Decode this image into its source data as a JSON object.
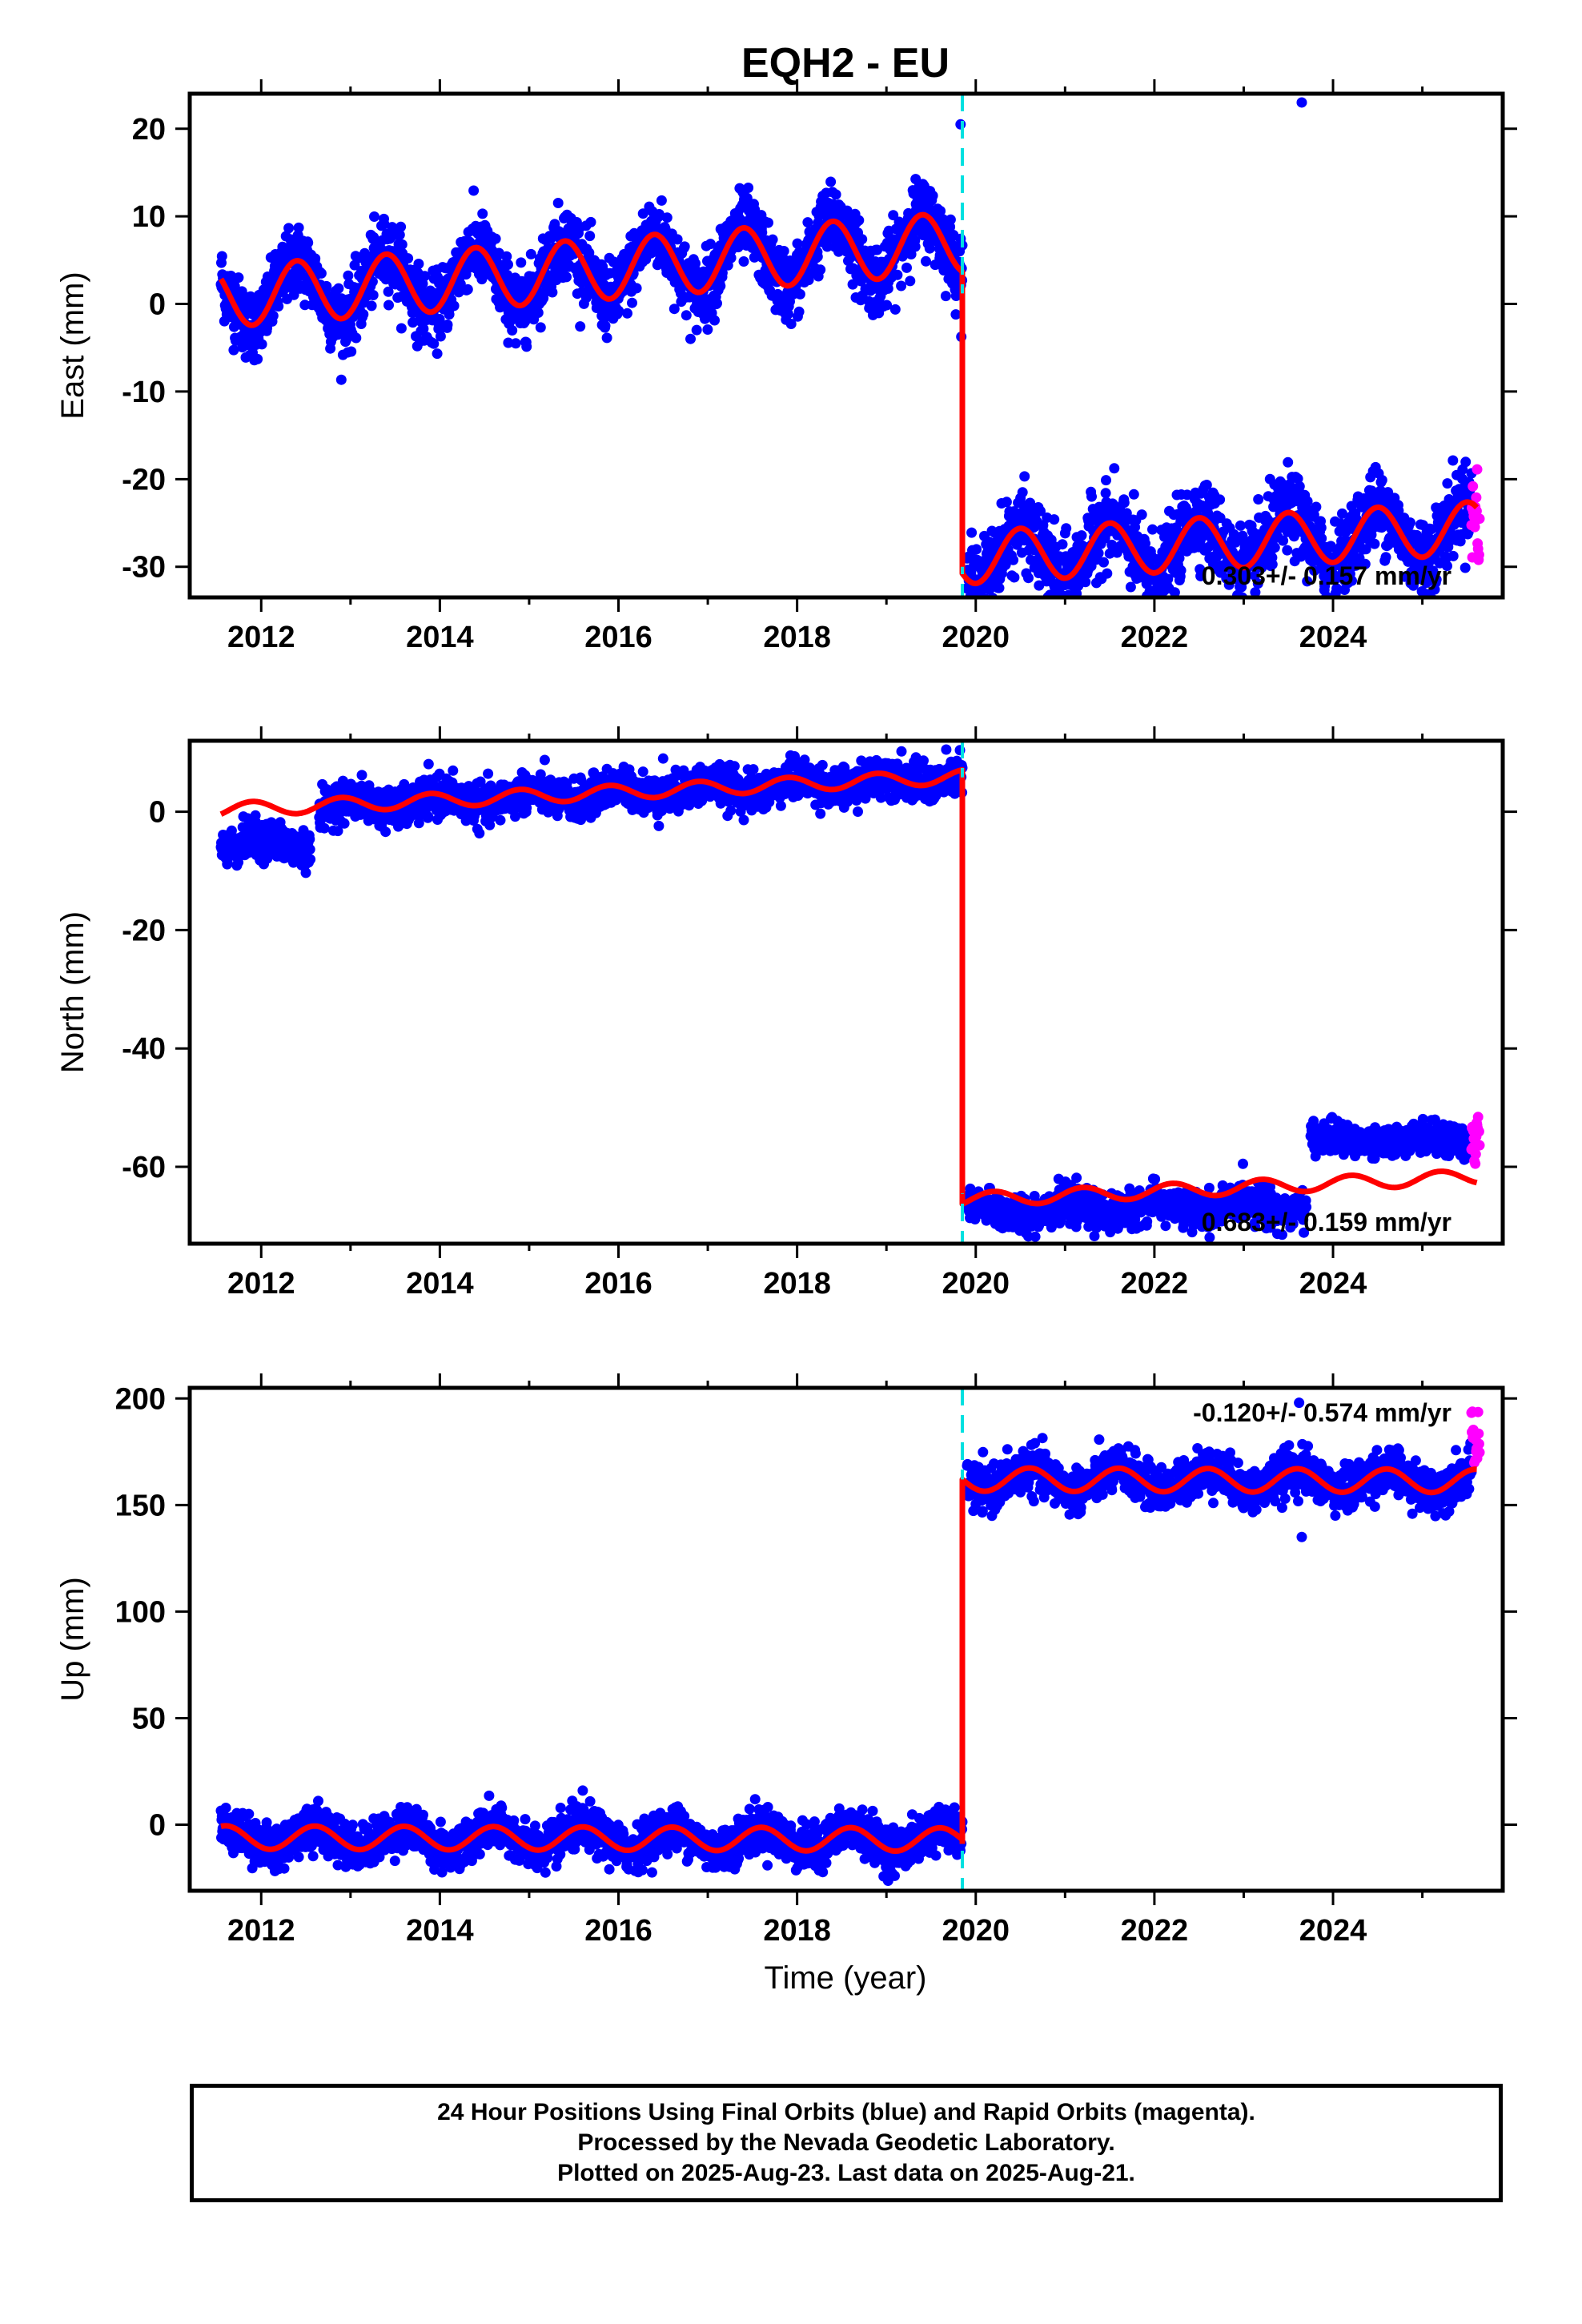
{
  "title": "EQH2 - EU",
  "xlabel": "Time (year)",
  "colors": {
    "final_points": "#0000ff",
    "rapid_points": "#ff00ff",
    "model": "#ff0000",
    "event_line": "#00e0e0",
    "frame": "#000000"
  },
  "footer": {
    "line1": "24 Hour Positions Using Final Orbits (blue) and Rapid Orbits (magenta).",
    "line2": "Processed by the Nevada Geodetic Laboratory.",
    "line3": "Plotted on 2025-Aug-23. Last data on 2025-Aug-21."
  },
  "chart_data": [
    {
      "type": "scatter",
      "component": "East",
      "ylabel": "East (mm)",
      "xlim": [
        2011.2,
        2025.9
      ],
      "ylim": [
        -33.5,
        24
      ],
      "xticks": [
        2012,
        2014,
        2016,
        2018,
        2020,
        2022,
        2024
      ],
      "yticks": [
        20,
        10,
        0,
        -10,
        -20,
        -30
      ],
      "rate_text": "0.303+/- 0.157 mm/yr",
      "rate_position": "bottom-right",
      "event_line_x": 2019.85,
      "series": [
        {
          "description": "blue final-orbit daily positions, approx. envelope",
          "segments": [
            {
              "x": [
                2011.55,
                2019.85
              ],
              "offset": 0.8,
              "trend": 0.75,
              "amplitude": 3.5,
              "phase": 2012.4,
              "scatter": 2.0,
              "role": "final"
            },
            {
              "x": [
                2019.9,
                2025.55
              ],
              "offset": -29.0,
              "trend": 0.6,
              "amplitude": 3.0,
              "phase": 2020.5,
              "scatter": 2.2,
              "role": "final"
            },
            {
              "x": [
                2025.55,
                2025.64
              ],
              "offset": -24.0,
              "trend": 0,
              "amplitude": 0,
              "phase": 2025,
              "scatter": 3.0,
              "role": "rapid"
            }
          ],
          "outliers": [
            {
              "x": 2019.83,
              "y": 20.5
            },
            {
              "x": 2023.65,
              "y": 23.0
            },
            {
              "x": 2014.85,
              "y": -4.5
            }
          ]
        },
        {
          "name": "model",
          "type": "line",
          "segments": [
            {
              "x": [
                2011.55,
                2019.85
              ],
              "offset": 0.8,
              "trend": 0.75,
              "amplitude": 3.5,
              "phase": 2012.4
            },
            {
              "x": [
                2019.85,
                2025.62
              ],
              "offset": -29.0,
              "trend": 0.6,
              "amplitude": 3.0,
              "phase": 2020.5
            }
          ],
          "step": {
            "x": 2019.85,
            "from": 1.2,
            "to": -30.0
          }
        }
      ]
    },
    {
      "type": "scatter",
      "component": "North",
      "ylabel": "North (mm)",
      "xlim": [
        2011.2,
        2025.9
      ],
      "ylim": [
        -73,
        12
      ],
      "xticks": [
        2012,
        2014,
        2016,
        2018,
        2020,
        2022,
        2024
      ],
      "yticks": [
        0,
        -20,
        -40,
        -60
      ],
      "rate_text": "0.683+/- 0.159 mm/yr",
      "rate_position": "bottom-right",
      "event_line_x": 2019.85,
      "series": [
        {
          "description": "blue final-orbit daily positions, approx. envelope",
          "segments": [
            {
              "x": [
                2011.55,
                2012.55
              ],
              "offset": -5.5,
              "trend": 0,
              "amplitude": 1.0,
              "phase": 2012,
              "scatter": 1.6,
              "role": "final"
            },
            {
              "x": [
                2012.65,
                2019.85
              ],
              "offset": 0.8,
              "trend": 0.7,
              "amplitude": 1.0,
              "phase": 2013,
              "scatter": 1.6,
              "role": "final"
            },
            {
              "x": [
                2019.9,
                2023.7
              ],
              "offset": -67.5,
              "trend": 0.25,
              "amplitude": 0.8,
              "phase": 2020,
              "scatter": 1.5,
              "role": "final"
            },
            {
              "x": [
                2023.75,
                2025.55
              ],
              "offset": -55.5,
              "trend": 0.0,
              "amplitude": 0.6,
              "phase": 2024,
              "scatter": 1.2,
              "role": "final"
            },
            {
              "x": [
                2025.55,
                2025.64
              ],
              "offset": -55.5,
              "trend": 0,
              "amplitude": 0,
              "phase": 2025,
              "scatter": 2.0,
              "role": "rapid"
            }
          ],
          "outliers": [
            {
              "x": 2016.5,
              "y": 9.0
            }
          ]
        },
        {
          "name": "model",
          "type": "line",
          "segments": [
            {
              "x": [
                2011.55,
                2019.85
              ],
              "offset": 0.3,
              "trend": 0.68,
              "amplitude": 1.2,
              "phase": 2011.9
            },
            {
              "x": [
                2019.85,
                2025.62
              ],
              "offset": -65.6,
              "trend": 0.68,
              "amplitude": 1.2,
              "phase": 2020.2
            }
          ],
          "step": {
            "x": 2019.85,
            "from": 5.8,
            "to": -64.5
          }
        }
      ]
    },
    {
      "type": "scatter",
      "component": "Up",
      "ylabel": "Up (mm)",
      "xlim": [
        2011.2,
        2025.9
      ],
      "ylim": [
        -31,
        205
      ],
      "xticks": [
        2012,
        2014,
        2016,
        2018,
        2020,
        2022,
        2024
      ],
      "yticks": [
        200,
        150,
        100,
        50,
        0
      ],
      "rate_text": "-0.120+/- 0.574 mm/yr",
      "rate_position": "top-right",
      "event_line_x": 2019.85,
      "series": [
        {
          "description": "blue final-orbit daily positions, approx. envelope",
          "segments": [
            {
              "x": [
                2011.55,
                2019.85
              ],
              "offset": -6.0,
              "trend": -0.12,
              "amplitude": 5.0,
              "phase": 2012.6,
              "scatter": 5.0,
              "role": "final"
            },
            {
              "x": [
                2019.9,
                2025.55
              ],
              "offset": 162.0,
              "trend": -0.12,
              "amplitude": 5.0,
              "phase": 2020.6,
              "scatter": 5.0,
              "role": "final"
            },
            {
              "x": [
                2025.55,
                2025.64
              ],
              "offset": 180.0,
              "trend": 0,
              "amplitude": 0,
              "phase": 2025,
              "scatter": 8.0,
              "role": "rapid"
            }
          ],
          "outliers": [
            {
              "x": 2015.6,
              "y": 16.0
            },
            {
              "x": 2023.65,
              "y": 135.0
            },
            {
              "x": 2023.62,
              "y": 198.0
            }
          ]
        },
        {
          "name": "model",
          "type": "line",
          "segments": [
            {
              "x": [
                2011.55,
                2019.85
              ],
              "offset": -6.0,
              "trend": -0.12,
              "amplitude": 5.5,
              "phase": 2012.6
            },
            {
              "x": [
                2019.85,
                2025.62
              ],
              "offset": 162.0,
              "trend": -0.12,
              "amplitude": 5.5,
              "phase": 2020.6
            }
          ],
          "step": {
            "x": 2019.85,
            "from": -9.0,
            "to": 162.0
          }
        }
      ]
    }
  ]
}
